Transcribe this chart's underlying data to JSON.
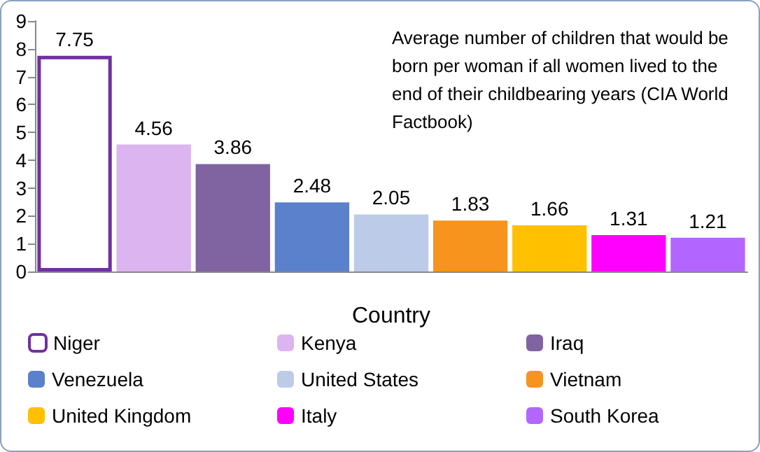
{
  "chart_data": {
    "type": "bar",
    "xlabel": "Country",
    "categories": [
      null,
      null,
      null,
      null,
      null,
      null,
      null,
      null,
      null
    ],
    "series": [
      {
        "name": "Niger",
        "color": "#ffffff",
        "values": [
          7.75,
          null,
          null,
          null,
          null,
          null,
          null,
          null,
          null
        ]
      },
      {
        "name": "Kenya",
        "color": "#dcb4f0",
        "values": [
          null,
          4.56,
          null,
          null,
          null,
          null,
          null,
          null,
          null
        ]
      },
      {
        "name": "Iraq",
        "color": "#8064a2",
        "values": [
          null,
          null,
          3.86,
          null,
          null,
          null,
          null,
          null,
          null
        ]
      },
      {
        "name": "Venezuela",
        "color": "#5b80cc",
        "values": [
          null,
          null,
          null,
          2.48,
          null,
          null,
          null,
          null,
          null
        ]
      },
      {
        "name": "United States",
        "color": "#bccbe8",
        "values": [
          null,
          null,
          null,
          null,
          2.05,
          null,
          null,
          null,
          null
        ]
      },
      {
        "name": "Vietnam",
        "color": "#f7941d",
        "values": [
          null,
          null,
          null,
          null,
          null,
          1.83,
          null,
          null,
          null
        ]
      },
      {
        "name": "United Kingdom",
        "color": "#ffc000",
        "values": [
          null,
          null,
          null,
          null,
          null,
          null,
          1.66,
          null,
          null
        ]
      },
      {
        "name": "Italy",
        "color": "#ff00ff",
        "values": [
          null,
          null,
          null,
          null,
          null,
          null,
          null,
          1.31,
          null
        ]
      },
      {
        "name": "South Korea",
        "color": "#b366ff",
        "values": [
          null,
          null,
          null,
          null,
          null,
          null,
          null,
          null,
          1.21
        ]
      }
    ],
    "ylim": [
      0,
      9
    ],
    "yticks": [
      0,
      1,
      2,
      3,
      4,
      5,
      6,
      7,
      8,
      9
    ],
    "grid": false,
    "legend": "bottom",
    "data_labels": true,
    "annotations": [
      "Average number of children that would be born per woman if all women lived to the end of their childbearing years (CIA World Factbook)"
    ]
  }
}
